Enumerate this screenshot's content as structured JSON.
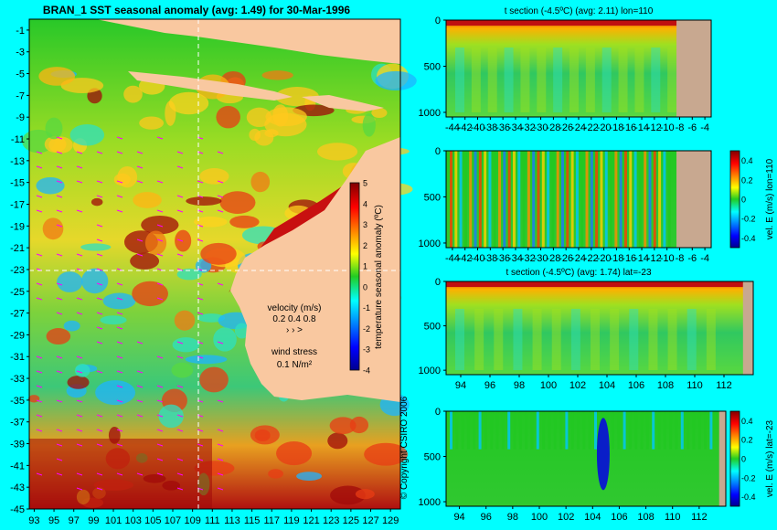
{
  "main_map": {
    "title": "BRAN_1  SST seasonal anomaly (avg: 1.49) for 30-Mar-1996",
    "lat_ticks": [
      "-1",
      "-3",
      "-5",
      "-7",
      "-9",
      "-11",
      "-13",
      "-15",
      "-17",
      "-19",
      "-21",
      "-23",
      "-25",
      "-27",
      "-29",
      "-31",
      "-33",
      "-35",
      "-37",
      "-39",
      "-41",
      "-43",
      "-45"
    ],
    "lon_ticks": [
      "93",
      "95",
      "97",
      "99",
      "101",
      "103",
      "105",
      "107",
      "109",
      "111",
      "113",
      "115",
      "117",
      "119",
      "121",
      "123",
      "125",
      "127",
      "129"
    ],
    "colorbar_label": "temperature seasonal anomaly (ºC)",
    "colorbar_ticks": [
      "5",
      "4",
      "3",
      "2",
      "1",
      "0",
      "-1",
      "-2",
      "-3",
      "-4"
    ],
    "velocity_label": "velocity (m/s)",
    "velocity_scale": "0.2 0.4 0.8",
    "wind_label": "wind stress",
    "wind_value": "0.1 N/m²",
    "colors": {
      "land": "#f9c8a0",
      "vector": "#ff00ff",
      "crosshair": "#ffffff"
    }
  },
  "copyright": "© Copyright CSIRO 2006",
  "panels": [
    {
      "title": "t section (-4.5ºC) (avg: 2.11) lon=110",
      "y_ticks": [
        "0",
        "500",
        "1000"
      ],
      "x_ticks": [
        "-44",
        "-42",
        "-40",
        "-38",
        "-36",
        "-34",
        "-32",
        "-30",
        "-28",
        "-26",
        "-24",
        "-22",
        "-20",
        "-18",
        "-16",
        "-14",
        "-12",
        "-10",
        "-8",
        "-6",
        "-4"
      ],
      "colorbar_label": "",
      "colorbar_ticks": []
    },
    {
      "title": "",
      "y_ticks": [
        "0",
        "500",
        "1000"
      ],
      "x_ticks": [
        "-44",
        "-42",
        "-40",
        "-38",
        "-36",
        "-34",
        "-32",
        "-30",
        "-28",
        "-26",
        "-24",
        "-22",
        "-20",
        "-18",
        "-16",
        "-14",
        "-12",
        "-10",
        "-8",
        "-6",
        "-4"
      ],
      "colorbar_label": "vel. E (m/s) lon=110",
      "colorbar_ticks": [
        "0.4",
        "0.2",
        "0",
        "-0.2",
        "-0.4"
      ]
    },
    {
      "title": "t section (-4.5ºC) (avg: 1.74) lat=-23",
      "y_ticks": [
        "0",
        "500",
        "1000"
      ],
      "x_ticks": [
        "94",
        "96",
        "98",
        "100",
        "102",
        "104",
        "106",
        "108",
        "110",
        "112"
      ],
      "colorbar_label": "",
      "colorbar_ticks": []
    },
    {
      "title": "",
      "y_ticks": [
        "0",
        "500",
        "1000"
      ],
      "x_ticks": [
        "94",
        "96",
        "98",
        "100",
        "102",
        "104",
        "106",
        "108",
        "110",
        "112"
      ],
      "colorbar_label": "vel. E (m/s) lat=-23",
      "colorbar_ticks": [
        "0.4",
        "0.2",
        "0",
        "-0.2",
        "-0.4"
      ]
    }
  ],
  "chart_data": [
    {
      "type": "heatmap",
      "title": "BRAN_1  SST seasonal anomaly (avg: 1.49) for 30-Mar-1996",
      "xlim": [
        92.5,
        130
      ],
      "ylim": [
        -45,
        0
      ],
      "colorbar": {
        "label": "temperature seasonal anomaly (ºC)",
        "range": [
          -4,
          5
        ]
      }
    },
    {
      "type": "heatmap",
      "title": "t section (-4.5ºC) (avg: 2.11) lon=110",
      "xlim": [
        -45,
        -3
      ],
      "ylim": [
        1050,
        0
      ]
    },
    {
      "type": "heatmap",
      "title": "",
      "xlim": [
        -45,
        -3
      ],
      "ylim": [
        1050,
        0
      ],
      "colorbar": {
        "label": "vel. E (m/s) lon=110",
        "range": [
          -0.5,
          0.5
        ]
      }
    },
    {
      "type": "heatmap",
      "title": "t section (-4.5ºC) (avg: 1.74) lat=-23",
      "xlim": [
        93,
        114
      ],
      "ylim": [
        1050,
        0
      ]
    },
    {
      "type": "heatmap",
      "title": "",
      "xlim": [
        93,
        114
      ],
      "ylim": [
        1050,
        0
      ],
      "colorbar": {
        "label": "vel. E (m/s) lat=-23",
        "range": [
          -0.5,
          0.5
        ]
      }
    }
  ]
}
